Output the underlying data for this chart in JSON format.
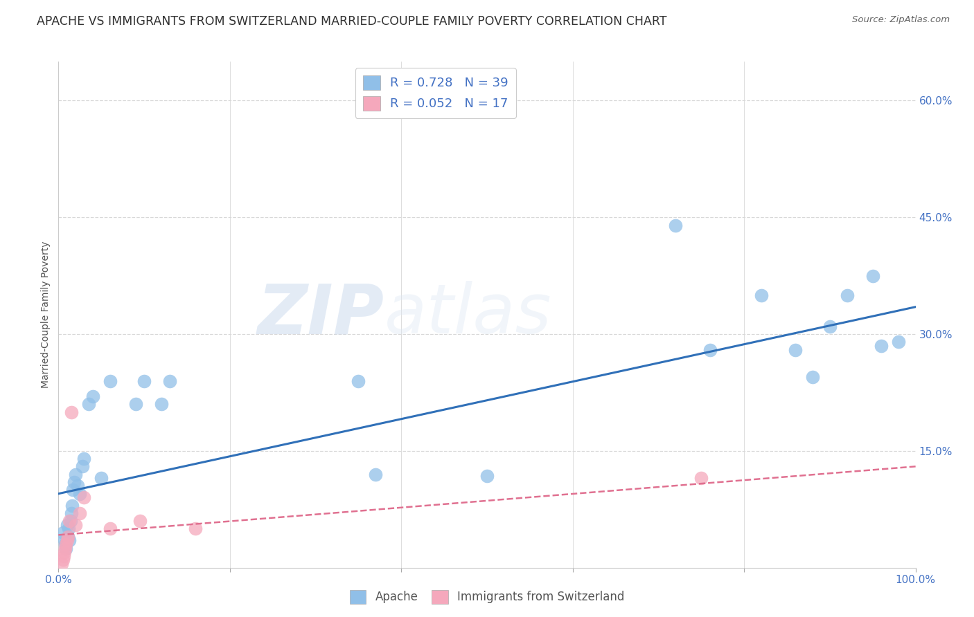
{
  "title": "APACHE VS IMMIGRANTS FROM SWITZERLAND MARRIED-COUPLE FAMILY POVERTY CORRELATION CHART",
  "source": "Source: ZipAtlas.com",
  "ylabel": "Married-Couple Family Poverty",
  "xlim": [
    0.0,
    1.0
  ],
  "ylim": [
    0.0,
    0.65
  ],
  "yticks": [
    0.15,
    0.3,
    0.45,
    0.6
  ],
  "ytick_labels": [
    "15.0%",
    "30.0%",
    "45.0%",
    "60.0%"
  ],
  "xticks": [
    0.0,
    0.2,
    0.4,
    0.6,
    0.8,
    1.0
  ],
  "xtick_labels": [
    "0.0%",
    "",
    "",
    "",
    "",
    "100.0%"
  ],
  "background_color": "#ffffff",
  "grid_color": "#d8d8d8",
  "apache_color": "#90bfe8",
  "swiss_color": "#f5a8bc",
  "apache_line_color": "#3070b8",
  "swiss_line_color": "#e07090",
  "legend_R1": "0.728",
  "legend_N1": "39",
  "legend_R2": "0.052",
  "legend_N2": "17",
  "legend_text_color": "#4472c4",
  "title_fontsize": 12.5,
  "axis_label_fontsize": 10,
  "tick_fontsize": 11,
  "watermark_zip": "ZIP",
  "watermark_atlas": "atlas",
  "apache_x": [
    0.005,
    0.007,
    0.008,
    0.009,
    0.01,
    0.011,
    0.012,
    0.013,
    0.014,
    0.015,
    0.016,
    0.017,
    0.018,
    0.02,
    0.022,
    0.025,
    0.028,
    0.03,
    0.035,
    0.04,
    0.05,
    0.06,
    0.09,
    0.1,
    0.12,
    0.13,
    0.35,
    0.37,
    0.5,
    0.72,
    0.76,
    0.82,
    0.86,
    0.88,
    0.9,
    0.92,
    0.95,
    0.96,
    0.98
  ],
  "apache_y": [
    0.045,
    0.035,
    0.03,
    0.025,
    0.055,
    0.04,
    0.05,
    0.035,
    0.06,
    0.07,
    0.08,
    0.1,
    0.11,
    0.12,
    0.105,
    0.095,
    0.13,
    0.14,
    0.21,
    0.22,
    0.115,
    0.24,
    0.21,
    0.24,
    0.21,
    0.24,
    0.24,
    0.12,
    0.118,
    0.44,
    0.28,
    0.35,
    0.28,
    0.245,
    0.31,
    0.35,
    0.375,
    0.285,
    0.29
  ],
  "swiss_x": [
    0.004,
    0.005,
    0.006,
    0.007,
    0.008,
    0.009,
    0.01,
    0.011,
    0.013,
    0.015,
    0.02,
    0.025,
    0.03,
    0.06,
    0.095,
    0.16,
    0.75
  ],
  "swiss_y": [
    0.005,
    0.01,
    0.015,
    0.02,
    0.025,
    0.03,
    0.035,
    0.04,
    0.06,
    0.2,
    0.055,
    0.07,
    0.09,
    0.05,
    0.06,
    0.05,
    0.115
  ],
  "apache_line_x0": 0.0,
  "apache_line_y0": 0.095,
  "apache_line_x1": 1.0,
  "apache_line_y1": 0.335,
  "swiss_line_x0": 0.0,
  "swiss_line_y0": 0.042,
  "swiss_line_x1": 1.0,
  "swiss_line_y1": 0.13
}
